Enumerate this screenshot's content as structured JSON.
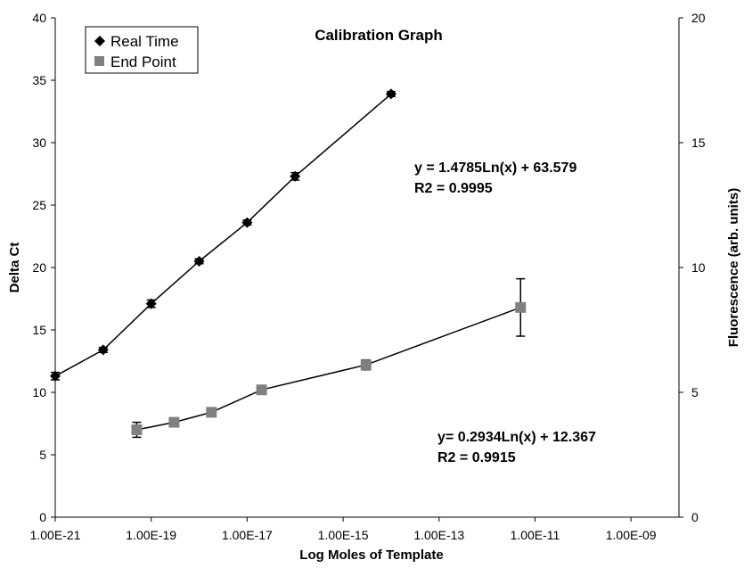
{
  "chart_data": {
    "type": "scatter",
    "title": "Calibration Graph",
    "xlabel": "Log  Moles of Template",
    "ylabel": "Delta Ct",
    "y2label": "Fluorescence (arb. units)",
    "x_scale": "log",
    "xlim": [
      1e-21,
      1e-08
    ],
    "ylim": [
      0,
      40
    ],
    "y2lim": [
      0,
      20
    ],
    "x_ticks": [
      1e-21,
      1e-19,
      1e-17,
      1e-15,
      1e-13,
      1e-11,
      1e-09
    ],
    "x_tick_labels": [
      "1.00E-21",
      "1.00E-19",
      "1.00E-17",
      "1.00E-15",
      "1.00E-13",
      "1.00E-11",
      "1.00E-09"
    ],
    "y_ticks": [
      0,
      5,
      10,
      15,
      20,
      25,
      30,
      35,
      40
    ],
    "y2_ticks": [
      0,
      5,
      10,
      15,
      20
    ],
    "grid": false,
    "legend_position": "top-left",
    "series": [
      {
        "name": "Real Time",
        "marker": "diamond",
        "color": "#000000",
        "axis": "left",
        "x": [
          1e-21,
          1e-20,
          1e-19,
          1e-18,
          1e-17,
          1e-16,
          1e-14
        ],
        "y": [
          11.3,
          13.4,
          17.1,
          20.5,
          23.6,
          27.3,
          33.9
        ],
        "error": [
          0.3,
          0.2,
          0.3,
          0.2,
          0.2,
          0.3,
          0.2
        ],
        "equation": "y = 1.4785Ln(x) + 63.579",
        "r2": "R2 = 0.9995"
      },
      {
        "name": "End Point",
        "marker": "square",
        "color": "#808080",
        "axis": "left",
        "x": [
          5e-20,
          3e-19,
          1.8e-18,
          2e-17,
          3e-15,
          5e-12
        ],
        "y": [
          7.0,
          7.6,
          8.4,
          10.2,
          12.2,
          16.8
        ],
        "error": [
          0.6,
          0.3,
          0.3,
          0.2,
          0.4,
          2.3
        ],
        "equation": "y= 0.2934Ln(x) + 12.367",
        "r2": "R2 = 0.9915"
      }
    ]
  }
}
